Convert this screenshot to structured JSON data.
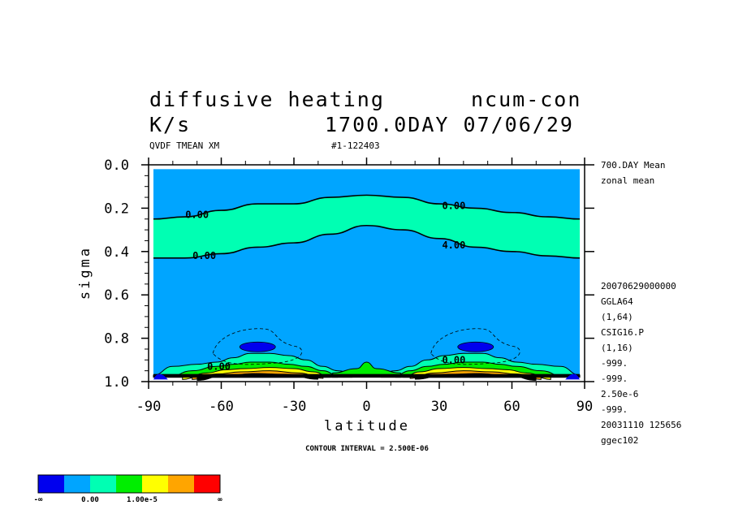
{
  "header": {
    "title_left": "diffusive heating",
    "title_right": "ncum-con",
    "units": "K/s",
    "day_date": "1700.0DAY 07/06/29",
    "field_label": "QVDF TMEAN XM",
    "run_label": "#1-122403"
  },
  "side_info": {
    "top_lines": [
      "700.DAY Mean",
      "zonal mean"
    ],
    "meta_lines": [
      "20070629000000",
      "GGLA64",
      "(1,64)",
      "CSIG16.P",
      "(1,16)",
      "-999.",
      "-999.",
      "2.50e-6",
      "-999.",
      "20031110 125656",
      "ggec102"
    ]
  },
  "footer": {
    "contour_interval": "CONTOUR INTERVAL = 2.500E-06"
  },
  "colorbar": {
    "colors": [
      "#0000ee",
      "#00a5ff",
      "#00ffb3",
      "#00ee00",
      "#ffff00",
      "#ffa500",
      "#ff0000"
    ],
    "labels": [
      "-∞",
      "0.00",
      "1.00e-5",
      "∞"
    ]
  },
  "chart_data": {
    "type": "contour",
    "title": "diffusive heating",
    "xlabel": "latitude",
    "ylabel": "sigma",
    "xlim": [
      -90,
      90
    ],
    "ylim": [
      0.0,
      1.0
    ],
    "y_inverted": true,
    "x_ticks": [
      -90,
      -60,
      -30,
      0,
      30,
      60,
      90
    ],
    "x_tick_labels": [
      "-90",
      "-60",
      "-30",
      "0",
      "30",
      "60",
      "90"
    ],
    "y_ticks": [
      0.0,
      0.2,
      0.4,
      0.6,
      0.8,
      1.0
    ],
    "y_tick_labels": [
      "0.0",
      "0.2",
      "0.4",
      "0.6",
      "0.8",
      "1.0"
    ],
    "contour_interval": 2.5e-06,
    "contour_labels": [
      {
        "text": "0.00",
        "lat": -70,
        "sigma": 0.23
      },
      {
        "text": "0.00",
        "lat": -67,
        "sigma": 0.42
      },
      {
        "text": "0.00",
        "lat": 36,
        "sigma": 0.19
      },
      {
        "text": "4.00",
        "lat": 36,
        "sigma": 0.37
      },
      {
        "text": "0.00",
        "lat": -61,
        "sigma": 0.93
      },
      {
        "text": "0.00",
        "lat": 36,
        "sigma": 0.9
      }
    ],
    "upper_band": {
      "lats": [
        -90,
        -75,
        -60,
        -45,
        -30,
        -15,
        0,
        15,
        30,
        45,
        60,
        75,
        90
      ],
      "top_sigma": [
        0.25,
        0.24,
        0.21,
        0.18,
        0.18,
        0.15,
        0.14,
        0.15,
        0.18,
        0.2,
        0.22,
        0.24,
        0.25
      ],
      "bot_sigma": [
        0.43,
        0.43,
        0.41,
        0.38,
        0.36,
        0.32,
        0.28,
        0.3,
        0.34,
        0.38,
        0.4,
        0.42,
        0.43
      ]
    },
    "negative_minima": [
      {
        "lat": -45,
        "sigma": 0.84
      },
      {
        "lat": 45,
        "sigma": 0.84
      }
    ],
    "surface_maxima": [
      {
        "lat": -40,
        "sigma": 0.96
      },
      {
        "lat": 40,
        "sigma": 0.96
      }
    ]
  }
}
